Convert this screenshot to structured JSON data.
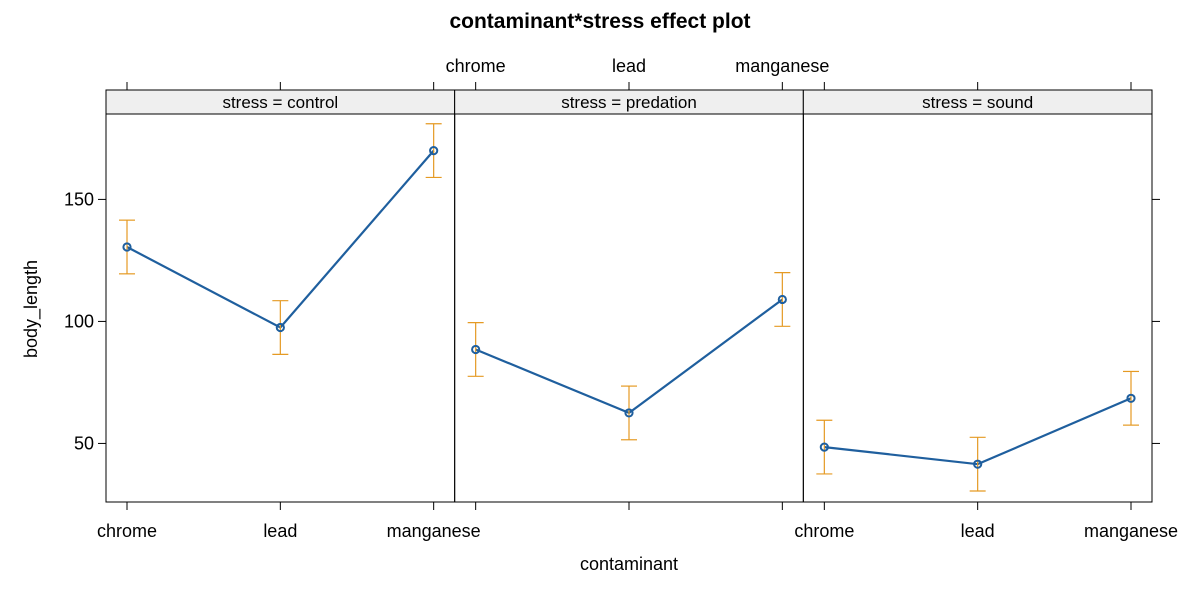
{
  "chart_data": {
    "type": "line",
    "title": "contaminant*stress effect plot",
    "xlabel": "contaminant",
    "ylabel": "body_length",
    "categories": [
      "chrome",
      "lead",
      "manganese"
    ],
    "yticks": [
      50,
      100,
      150
    ],
    "ylim": [
      26,
      185
    ],
    "grid": false,
    "line_color": "#1f5f9e",
    "errorbar_color": "#e59a23",
    "strip_color": "#efefef",
    "panels": [
      {
        "strip_label": "stress = control",
        "series": [
          {
            "values": [
              130.5,
              97.5,
              170
            ],
            "lower": [
              119.5,
              86.5,
              159
            ],
            "upper": [
              141.5,
              108.5,
              181
            ]
          }
        ]
      },
      {
        "strip_label": "stress = predation",
        "series": [
          {
            "values": [
              88.5,
              62.5,
              109
            ],
            "lower": [
              77.5,
              51.5,
              98
            ],
            "upper": [
              99.5,
              73.5,
              120
            ]
          }
        ]
      },
      {
        "strip_label": "stress = sound",
        "series": [
          {
            "values": [
              48.5,
              41.5,
              68.5
            ],
            "lower": [
              37.5,
              30.5,
              57.5
            ],
            "upper": [
              59.5,
              52.5,
              79.5
            ]
          }
        ]
      }
    ]
  }
}
